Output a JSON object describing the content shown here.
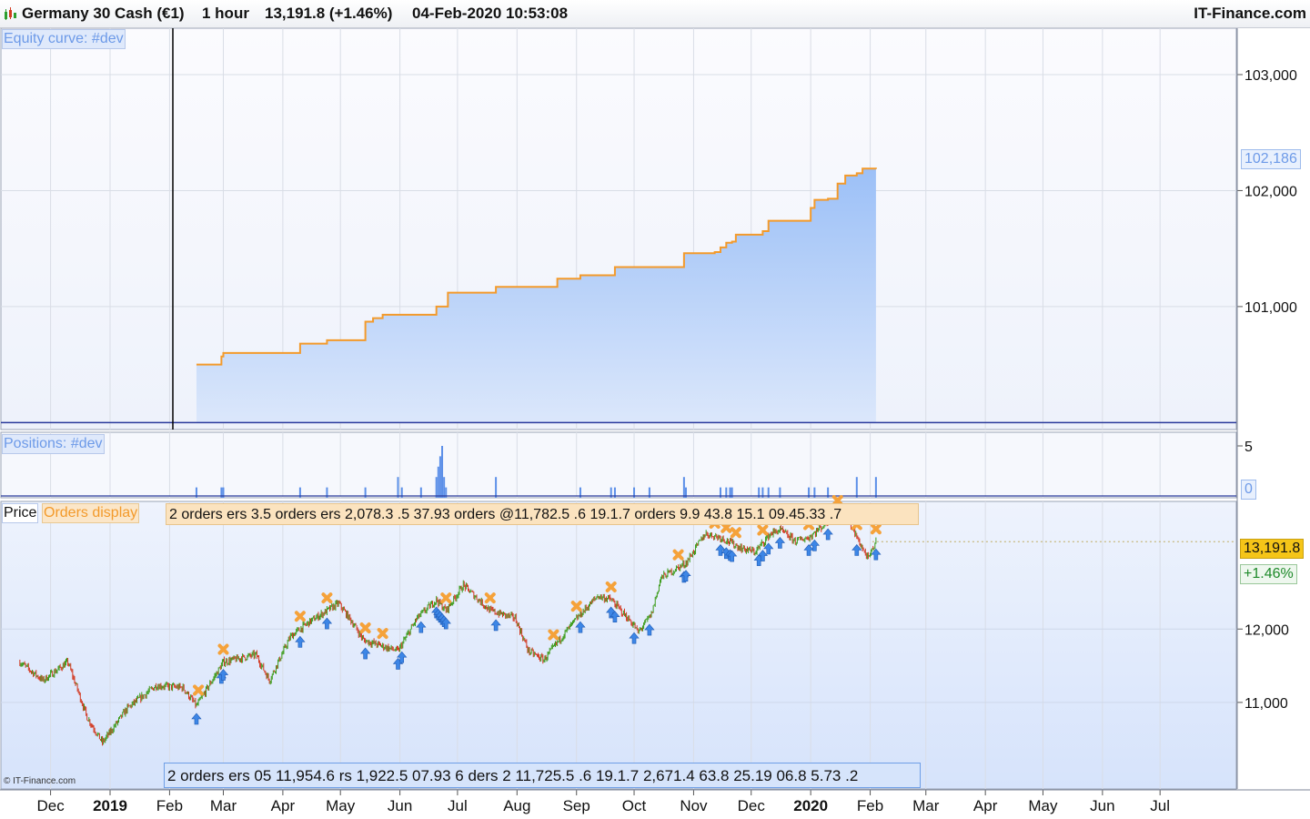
{
  "header": {
    "instrument": "Germany 30 Cash (€1)",
    "timeframe": "1 hour",
    "quote": "13,191.8 (+1.46%)",
    "datetime": "04-Feb-2020 10:53:08",
    "brand": "IT-Finance.com"
  },
  "panels": {
    "equity_label": "Equity curve: #dev",
    "positions_label": "Positions: #dev",
    "price_label": "Price",
    "orders_label": "Orders display",
    "copyright": "© IT-Finance.com",
    "orders_top_strip": "2 orders ers 3.5 orders ers 2,078.3 .5 37.93 orders @11,782.5 .6 19.1.7 orders 9.9 43.8 15.1 09.45.33 .7",
    "orders_bottom_strip": "2 orders ers 05 11,954.6 rs 1,922.5 07.93 6 ders 2 11,725.5 .6 19.1.7 2,671.4 63.8 25.19 06.8 5.73 .2"
  },
  "colors": {
    "equity_line": "#f39a2b",
    "equity_fill_top": "#9cc0f7",
    "equity_fill_bottom": "#dbe7fb",
    "baseline": "#2a3a9c",
    "position_bars": "#5b8fe8",
    "candle_up": "#3a9b18",
    "candle_down": "#d2361e",
    "sell_marker": "#f5a23a",
    "buy_marker": "#3d86e6",
    "price_badge": "#f5c518",
    "change_badge_text": "#1e8a2a"
  },
  "chart_data": [
    {
      "type": "area",
      "title": "Equity curve: #dev",
      "y_ticks": [
        "103,000",
        "102,000",
        "101,000"
      ],
      "last_value_label": "102,186",
      "ylim": [
        99940,
        103400
      ],
      "x": [
        "2019-02-15",
        "2019-02-16",
        "2019-02-28",
        "2019-03-01",
        "2019-04-09",
        "2019-04-10",
        "2019-04-23",
        "2019-04-24",
        "2019-05-13",
        "2019-05-14",
        "2019-05-18",
        "2019-05-23",
        "2019-06-20",
        "2019-06-25",
        "2019-06-26",
        "2019-07-18",
        "2019-07-21",
        "2019-08-20",
        "2019-08-22",
        "2019-09-01",
        "2019-09-03",
        "2019-09-19",
        "2019-09-21",
        "2019-10-24",
        "2019-10-27",
        "2019-11-12",
        "2019-11-15",
        "2019-11-18",
        "2019-11-21",
        "2019-11-23",
        "2019-12-05",
        "2019-12-07",
        "2019-12-10",
        "2019-12-31",
        "2020-01-01",
        "2020-01-03",
        "2020-01-10",
        "2020-01-15",
        "2020-01-19",
        "2020-01-25",
        "2020-01-28",
        "2020-02-04"
      ],
      "values": [
        100500,
        100500,
        100570,
        100600,
        100600,
        100680,
        100680,
        100710,
        100710,
        100870,
        100900,
        100930,
        101000,
        101000,
        101120,
        101120,
        101170,
        101170,
        101240,
        101240,
        101270,
        101270,
        101340,
        101340,
        101460,
        101470,
        101510,
        101550,
        101560,
        101620,
        101620,
        101650,
        101740,
        101740,
        101850,
        101920,
        101930,
        102060,
        102130,
        102150,
        102190,
        102186
      ]
    },
    {
      "type": "bar",
      "title": "Positions: #dev",
      "y_ticks": [
        "5"
      ],
      "last_value_label": "0",
      "ylim": [
        0,
        5
      ],
      "x": [
        "2019-02-15",
        "2019-02-28",
        "2019-03-01",
        "2019-04-10",
        "2019-04-24",
        "2019-05-14",
        "2019-05-31",
        "2019-06-02",
        "2019-06-12",
        "2019-06-20",
        "2019-06-21",
        "2019-06-22",
        "2019-06-23",
        "2019-06-24",
        "2019-06-25",
        "2019-07-21",
        "2019-09-03",
        "2019-09-19",
        "2019-09-21",
        "2019-10-01",
        "2019-10-09",
        "2019-10-27",
        "2019-10-28",
        "2019-11-15",
        "2019-11-18",
        "2019-11-20",
        "2019-11-21",
        "2019-12-05",
        "2019-12-07",
        "2019-12-10",
        "2019-12-16",
        "2019-12-31",
        "2020-01-03",
        "2020-01-10",
        "2020-01-25",
        "2020-02-04"
      ],
      "values": [
        1,
        1,
        1,
        1,
        1,
        1,
        2,
        1,
        1,
        2,
        3,
        4,
        5,
        2,
        1,
        2,
        1,
        1,
        1,
        1,
        1,
        2,
        1,
        1,
        1,
        1,
        1,
        1,
        1,
        1,
        1,
        1,
        1,
        1,
        2,
        2
      ]
    },
    {
      "type": "line",
      "title": "Germany 30 Cash (€1)",
      "y_ticks": [
        "12,000",
        "11,000"
      ],
      "last_value_label": "13,191.8",
      "change_label": "+1.46%",
      "ylim": [
        9820,
        13740
      ],
      "x_tick_labels": [
        "Dec",
        "2019",
        "Feb",
        "Mar",
        "Apr",
        "May",
        "Jun",
        "Jul",
        "Aug",
        "Sep",
        "Oct",
        "Nov",
        "Dec",
        "2020",
        "Feb",
        "Mar",
        "Apr",
        "May",
        "Jun",
        "Jul"
      ],
      "x": [
        "2018-11-15",
        "2018-11-27",
        "2018-12-10",
        "2018-12-20",
        "2018-12-28",
        "2019-01-10",
        "2019-01-25",
        "2019-02-08",
        "2019-02-15",
        "2019-03-01",
        "2019-03-18",
        "2019-03-25",
        "2019-04-05",
        "2019-04-15",
        "2019-04-30",
        "2019-05-07",
        "2019-05-13",
        "2019-05-31",
        "2019-06-10",
        "2019-06-20",
        "2019-06-25",
        "2019-07-04",
        "2019-07-18",
        "2019-07-31",
        "2019-08-07",
        "2019-08-15",
        "2019-08-26",
        "2019-09-03",
        "2019-09-12",
        "2019-09-19",
        "2019-10-01",
        "2019-10-03",
        "2019-10-10",
        "2019-10-15",
        "2019-10-28",
        "2019-11-07",
        "2019-11-15",
        "2019-11-26",
        "2019-12-03",
        "2019-12-11",
        "2019-12-16",
        "2019-12-24",
        "2019-12-31",
        "2020-01-07",
        "2020-01-16",
        "2020-01-21",
        "2020-01-31",
        "2020-02-04"
      ],
      "values": [
        11550,
        11300,
        11550,
        10800,
        10450,
        10920,
        11230,
        11200,
        10950,
        11550,
        11650,
        11300,
        11900,
        12100,
        12350,
        12100,
        11850,
        11700,
        12150,
        12400,
        12250,
        12600,
        12250,
        12150,
        11700,
        11580,
        11950,
        12200,
        12450,
        12400,
        12050,
        11950,
        12200,
        12700,
        12900,
        13300,
        13250,
        13100,
        13050,
        13300,
        13350,
        13200,
        13250,
        13400,
        13600,
        13450,
        12950,
        13191.8
      ]
    }
  ]
}
